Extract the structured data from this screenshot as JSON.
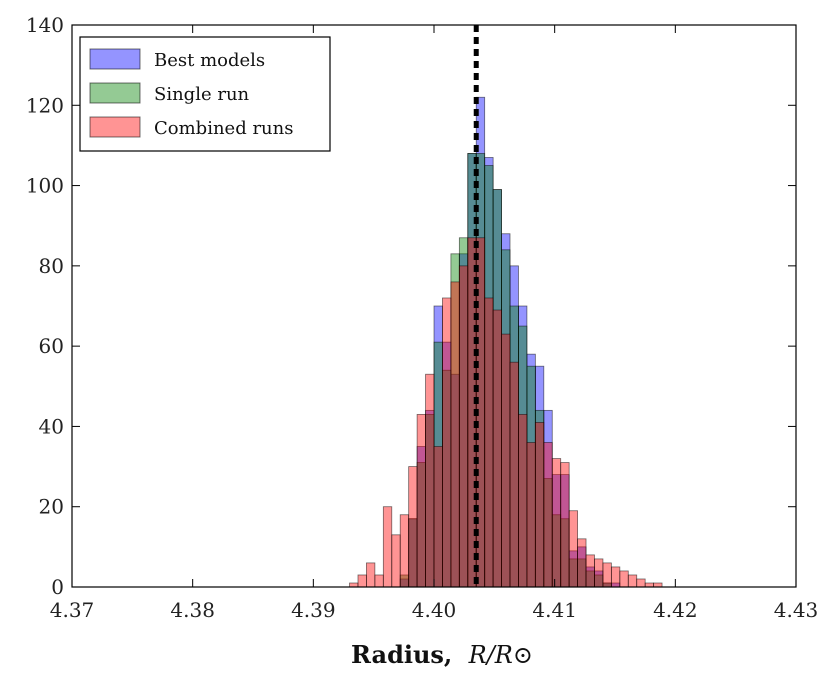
{
  "chart_data": {
    "type": "histogram",
    "title": "",
    "xlabel": "Radius,",
    "xlabel_math": "R/R⊙",
    "ylabel": "",
    "xlim": [
      4.37,
      4.43
    ],
    "ylim": [
      0,
      140
    ],
    "xticks": [
      "4.37",
      "4.38",
      "4.39",
      "4.40",
      "4.41",
      "4.42",
      "4.43"
    ],
    "yticks": [
      "0",
      "20",
      "40",
      "60",
      "80",
      "100",
      "120",
      "140"
    ],
    "bin_edges": [
      4.393,
      4.3937,
      4.3944,
      4.3951,
      4.3958,
      4.3965,
      4.3972,
      4.3979,
      4.3986,
      4.3993,
      4.4,
      4.4007,
      4.4014,
      4.4021,
      4.4028,
      4.4035,
      4.4042,
      4.4049,
      4.4056,
      4.4063,
      4.407,
      4.4077,
      4.4084,
      4.4091,
      4.4098,
      4.4105,
      4.4112,
      4.4119,
      4.4126,
      4.4133,
      4.414,
      4.4147,
      4.4154,
      4.4161,
      4.4168,
      4.4175,
      4.4182,
      4.4189,
      4.4196,
      4.4203,
      4.421,
      4.4217,
      4.4224,
      4.4231,
      4.4238
    ],
    "vline": {
      "x": 4.4035,
      "style": "dotted",
      "color": "#000000"
    },
    "legend": {
      "position": "top-left"
    },
    "series": [
      {
        "name": "Best models",
        "color": "#0000ff",
        "values": [
          0,
          0,
          0,
          0,
          0,
          0,
          2,
          17,
          35,
          44,
          70,
          61,
          53,
          83,
          108,
          122,
          107,
          99,
          88,
          80,
          70,
          58,
          55,
          44,
          28,
          28,
          9,
          10,
          5,
          4,
          1,
          1,
          0,
          0,
          0,
          0,
          0,
          0,
          0,
          0,
          0,
          0,
          0,
          0
        ]
      },
      {
        "name": "Single run",
        "color": "#008000",
        "values": [
          0,
          0,
          0,
          0,
          0,
          0,
          3,
          17,
          31,
          43,
          61,
          54,
          83,
          87,
          108,
          108,
          105,
          99,
          84,
          70,
          65,
          55,
          44,
          27,
          18,
          17,
          7,
          7,
          4,
          3,
          1,
          0,
          0,
          0,
          0,
          0,
          0,
          0,
          0,
          0,
          0,
          0,
          0,
          0
        ]
      },
      {
        "name": "Combined runs",
        "color": "#ff0000",
        "values": [
          1,
          3,
          6,
          3,
          20,
          13,
          18,
          30,
          43,
          53,
          35,
          72,
          76,
          80,
          87,
          87,
          72,
          69,
          63,
          56,
          43,
          36,
          41,
          36,
          32,
          31,
          19,
          12,
          8,
          7,
          6,
          5,
          4,
          3,
          2,
          1,
          1,
          0,
          0,
          0,
          0,
          0,
          0,
          0
        ]
      }
    ]
  }
}
